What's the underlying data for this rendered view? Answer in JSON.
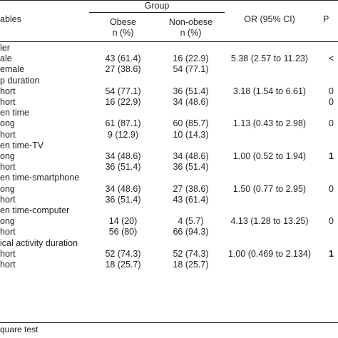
{
  "header": {
    "col_variables": "ables",
    "group_label": "Group",
    "col_obese_line1": "Obese",
    "col_obese_line2": "n (%)",
    "col_nonobese_line1": "Non-obese",
    "col_nonobese_line2": "n (%)",
    "col_or": "OR (95% CI)",
    "col_p": "P"
  },
  "rows": [
    {
      "kind": "group",
      "label": "ler"
    },
    {
      "kind": "data",
      "label": "ale",
      "obese": "43 (61.4)",
      "nonobese": "16 (22.9)",
      "or": "5.38 (2.57 to 11.23)",
      "p": "<"
    },
    {
      "kind": "data",
      "label": "emale",
      "obese": "27 (38.6)",
      "nonobese": "54 (77.1)",
      "or": "",
      "p": ""
    },
    {
      "kind": "group",
      "label": "p duration"
    },
    {
      "kind": "data",
      "label": "hort",
      "obese": "54 (77.1)",
      "nonobese": "36 (51.4)",
      "or": "3.18 (1.54 to 6.61)",
      "p": "0"
    },
    {
      "kind": "data",
      "label": "hort",
      "obese": "16 (22.9)",
      "nonobese": "34 (48.6)",
      "or": "",
      "p": "0"
    },
    {
      "kind": "group",
      "label": "en time"
    },
    {
      "kind": "data",
      "label": "ong",
      "obese": "61 (87.1)",
      "nonobese": "60 (85.7)",
      "or": "1.13 (0.43 to 2.98)",
      "p": "0"
    },
    {
      "kind": "data",
      "label": "hort",
      "obese": "9 (12.9)",
      "nonobese": "10 (14.3)",
      "or": "",
      "p": ""
    },
    {
      "kind": "group",
      "label": "en time-TV"
    },
    {
      "kind": "data",
      "label": "ong",
      "obese": "34 (48.6)",
      "nonobese": "34 (48.6)",
      "or": "1.00 (0.52 to 1.94)",
      "p": "1",
      "p_bold": true
    },
    {
      "kind": "data",
      "label": "hort",
      "obese": "36 (51.4)",
      "nonobese": "36 (51.4)",
      "or": "",
      "p": ""
    },
    {
      "kind": "group",
      "label": "en time-smartphone"
    },
    {
      "kind": "data",
      "label": "ong",
      "obese": "34 (48.6)",
      "nonobese": "27 (38.6)",
      "or": "1.50 (0.77 to 2.95)",
      "p": "0"
    },
    {
      "kind": "data",
      "label": "hort",
      "obese": "36 (51.4)",
      "nonobese": "43 (61.4)",
      "or": "",
      "p": ""
    },
    {
      "kind": "group",
      "label": "en time-computer"
    },
    {
      "kind": "data",
      "label": "ong",
      "obese": "14 (20)",
      "nonobese": "4 (5.7)",
      "or": "4.13 (1.28 to 13.25)",
      "p": "0"
    },
    {
      "kind": "data",
      "label": "hort",
      "obese": "56 (80)",
      "nonobese": "66 (94.3)",
      "or": "",
      "p": ""
    },
    {
      "kind": "group",
      "label": "ical activity duration"
    },
    {
      "kind": "data",
      "label": "hort",
      "obese": "52 (74.3)",
      "nonobese": "52 (74.3)",
      "or": "1.00 (0.469 to 2.134)",
      "p": "1",
      "p_bold": true
    },
    {
      "kind": "data",
      "label": "hort",
      "obese": "18 (25.7)",
      "nonobese": "18 (25.7)",
      "or": "",
      "p": ""
    }
  ],
  "footnote": "quare test"
}
